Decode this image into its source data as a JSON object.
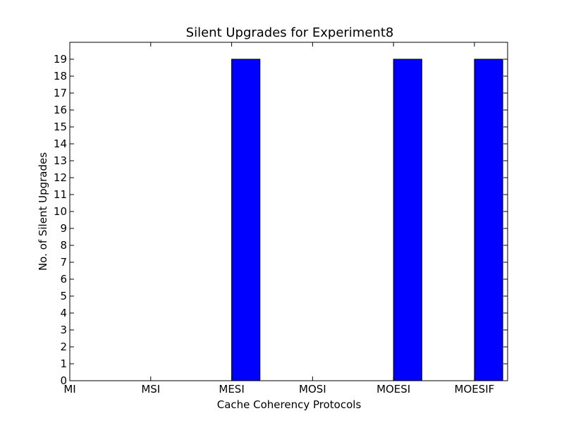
{
  "chart_data": {
    "type": "bar",
    "title": "Silent Upgrades for Experiment8",
    "xlabel": "Cache Coherency Protocols",
    "ylabel": "No. of Silent Upgrades",
    "categories": [
      "MI",
      "MSI",
      "MESI",
      "MOSI",
      "MOESI",
      "MOESIF"
    ],
    "values": [
      0,
      0,
      19,
      0,
      19,
      19
    ],
    "ylim": [
      0,
      20
    ],
    "yticks": [
      0,
      1,
      2,
      3,
      4,
      5,
      6,
      7,
      8,
      9,
      10,
      11,
      12,
      13,
      14,
      15,
      16,
      17,
      18,
      19
    ],
    "bar_color": "#0000ff",
    "grid": false
  }
}
